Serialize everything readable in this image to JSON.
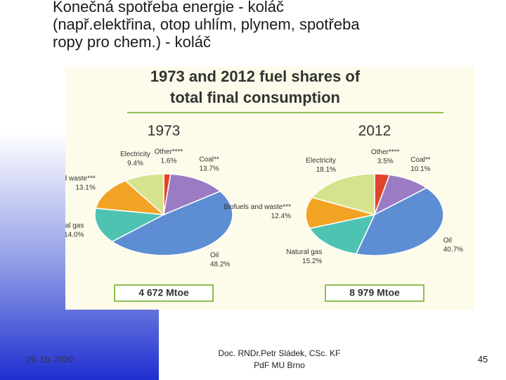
{
  "slide_title": [
    "Konečná spotřeba energie - koláč",
    "(např.elektřina, otop uhlím, plynem, spotřeba",
    "ropy pro chem.)    - koláč"
  ],
  "figure_title": [
    "1973 and 2012 fuel shares of",
    "total final consumption"
  ],
  "chart_data": [
    {
      "type": "pie",
      "title": "1973",
      "total": "4 672 Mtoe",
      "categories": [
        "Other****",
        "Coal**",
        "Oil",
        "Natural gas",
        "Biofuels and waste***",
        "Electricity"
      ],
      "values": [
        1.6,
        13.7,
        48.2,
        14.0,
        13.1,
        9.4
      ],
      "value_labels": [
        "1.6%",
        "13.7%",
        "48.2%",
        "14.0%",
        "13.1%",
        "9.4%"
      ],
      "colors": [
        "#e2432c",
        "#9b7bc4",
        "#5d8ed3",
        "#4fc3b2",
        "#f2a323",
        "#d6e38e"
      ]
    },
    {
      "type": "pie",
      "title": "2012",
      "total": "8 979 Mtoe",
      "categories": [
        "Other****",
        "Coal**",
        "Oil",
        "Natural gas",
        "Biofuels and waste***",
        "Electricity"
      ],
      "values": [
        3.5,
        10.1,
        40.7,
        15.2,
        12.4,
        18.1
      ],
      "value_labels": [
        "3.5%",
        "10.1%",
        "40.7%",
        "15.2%",
        "12.4%",
        "18.1%"
      ],
      "colors": [
        "#e2432c",
        "#9b7bc4",
        "#5d8ed3",
        "#4fc3b2",
        "#f2a323",
        "#d6e38e"
      ]
    }
  ],
  "footer": {
    "date": "29. 10. 2020",
    "author": [
      "Doc. RNDr.Petr Sládek, CSc. KF",
      "PdF MU Brno"
    ],
    "page": "45"
  }
}
